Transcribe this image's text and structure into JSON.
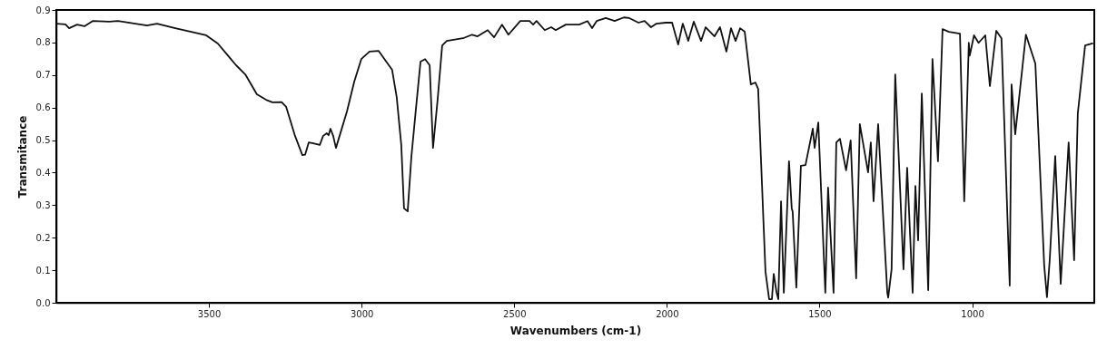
{
  "chart_data": {
    "type": "line",
    "xlabel": "Wavenumbers (cm-1)",
    "ylabel": "Transmitance",
    "xlim": [
      4000,
      600
    ],
    "xticks": [
      3500,
      3000,
      2500,
      2000,
      1500,
      1000
    ],
    "ylim": [
      0,
      0.9
    ],
    "yticks": [
      {
        "value": 0,
        "label": "0.0"
      },
      0.1,
      0.2,
      0.3,
      0.4,
      0.5,
      0.6,
      0.7,
      0.8,
      0.9
    ],
    "grid": false,
    "marker": "none",
    "line_style": "solid",
    "series": [
      {
        "color": "#111111",
        "x": [
          4000,
          3970,
          3958,
          3932,
          3908,
          3881,
          3827,
          3798,
          3703,
          3670,
          3610,
          3509,
          3471,
          3411,
          3381,
          3343,
          3313,
          3292,
          3262,
          3247,
          3218,
          3194,
          3185,
          3173,
          3158,
          3137,
          3126,
          3114,
          3108,
          3102,
          3093,
          3084,
          3075,
          3048,
          3024,
          3001,
          2974,
          2944,
          2900,
          2885,
          2870,
          2861,
          2849,
          2837,
          2822,
          2807,
          2792,
          2777,
          2766,
          2751,
          2736,
          2721,
          2668,
          2638,
          2620,
          2587,
          2566,
          2540,
          2519,
          2480,
          2450,
          2438,
          2427,
          2400,
          2379,
          2364,
          2331,
          2287,
          2260,
          2245,
          2230,
          2200,
          2171,
          2141,
          2123,
          2093,
          2073,
          2052,
          2034,
          2004,
          1983,
          1963,
          1948,
          1930,
          1912,
          1888,
          1873,
          1844,
          1826,
          1805,
          1790,
          1775,
          1760,
          1745,
          1725,
          1710,
          1701,
          1677,
          1665,
          1656,
          1650,
          1641,
          1635,
          1626,
          1617,
          1600,
          1591,
          1588,
          1576,
          1561,
          1546,
          1522,
          1516,
          1504,
          1481,
          1472,
          1454,
          1445,
          1433,
          1413,
          1398,
          1380,
          1368,
          1341,
          1332,
          1323,
          1308,
          1278,
          1275,
          1264,
          1252,
          1225,
          1213,
          1195,
          1186,
          1177,
          1165,
          1144,
          1130,
          1112,
          1097,
          1076,
          1040,
          1026,
          1011,
          1008,
          994,
          979,
          957,
          942,
          921,
          904,
          877,
          871,
          859,
          824,
          793,
          764,
          755,
          746,
          728,
          710,
          684,
          666,
          654,
          630,
          606
        ],
        "values": [
          0.858,
          0.856,
          0.844,
          0.855,
          0.85,
          0.866,
          0.864,
          0.866,
          0.852,
          0.858,
          0.844,
          0.822,
          0.797,
          0.73,
          0.702,
          0.641,
          0.624,
          0.616,
          0.617,
          0.602,
          0.513,
          0.454,
          0.455,
          0.493,
          0.49,
          0.485,
          0.513,
          0.521,
          0.515,
          0.535,
          0.513,
          0.476,
          0.504,
          0.588,
          0.68,
          0.749,
          0.772,
          0.774,
          0.716,
          0.632,
          0.485,
          0.29,
          0.281,
          0.448,
          0.596,
          0.741,
          0.749,
          0.73,
          0.476,
          0.624,
          0.791,
          0.805,
          0.813,
          0.824,
          0.819,
          0.838,
          0.816,
          0.855,
          0.824,
          0.866,
          0.866,
          0.855,
          0.866,
          0.838,
          0.847,
          0.838,
          0.855,
          0.855,
          0.866,
          0.844,
          0.866,
          0.875,
          0.866,
          0.877,
          0.875,
          0.861,
          0.866,
          0.847,
          0.858,
          0.861,
          0.861,
          0.794,
          0.858,
          0.805,
          0.864,
          0.805,
          0.847,
          0.819,
          0.847,
          0.772,
          0.844,
          0.805,
          0.844,
          0.833,
          0.671,
          0.677,
          0.657,
          0.095,
          0.011,
          0.011,
          0.089,
          0.033,
          0.011,
          0.312,
          0.031,
          0.435,
          0.29,
          0.28,
          0.047,
          0.421,
          0.423,
          0.535,
          0.476,
          0.554,
          0.031,
          0.354,
          0.031,
          0.493,
          0.504,
          0.407,
          0.499,
          0.075,
          0.549,
          0.401,
          0.493,
          0.312,
          0.549,
          0.031,
          0.016,
          0.103,
          0.702,
          0.103,
          0.415,
          0.031,
          0.359,
          0.192,
          0.643,
          0.039,
          0.749,
          0.435,
          0.841,
          0.833,
          0.827,
          0.312,
          0.799,
          0.76,
          0.822,
          0.799,
          0.822,
          0.666,
          0.836,
          0.813,
          0.053,
          0.671,
          0.518,
          0.824,
          0.735,
          0.114,
          0.017,
          0.131,
          0.451,
          0.058,
          0.493,
          0.131,
          0.582,
          0.791,
          0.797
        ]
      }
    ]
  }
}
